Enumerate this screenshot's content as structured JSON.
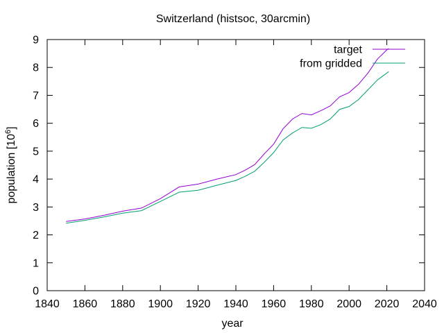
{
  "chart_data": {
    "type": "line",
    "title": "Switzerland (histsoc, 30arcmin)",
    "xlabel": "year",
    "ylabel_main": "population [10",
    "ylabel_exp": "6",
    "ylabel_close": "]",
    "xlim": [
      1840,
      2040
    ],
    "ylim": [
      0,
      9
    ],
    "xticks": [
      1840,
      1860,
      1880,
      1900,
      1920,
      1940,
      1960,
      1980,
      2000,
      2020,
      2040
    ],
    "yticks": [
      0,
      1,
      2,
      3,
      4,
      5,
      6,
      7,
      8,
      9
    ],
    "grid": false,
    "legend_position": "top-right",
    "series": [
      {
        "name": "target",
        "color": "#9400d3",
        "x": [
          1850,
          1860,
          1870,
          1880,
          1890,
          1900,
          1910,
          1920,
          1930,
          1940,
          1945,
          1950,
          1955,
          1960,
          1965,
          1970,
          1975,
          1980,
          1985,
          1990,
          1995,
          2000,
          2005,
          2010,
          2015,
          2020,
          2021
        ],
        "y": [
          2.48,
          2.57,
          2.7,
          2.85,
          2.96,
          3.3,
          3.72,
          3.82,
          4.0,
          4.16,
          4.32,
          4.52,
          4.9,
          5.25,
          5.8,
          6.15,
          6.35,
          6.3,
          6.45,
          6.62,
          6.95,
          7.1,
          7.4,
          7.8,
          8.3,
          8.63,
          8.68
        ]
      },
      {
        "name": "from gridded",
        "color": "#009e73",
        "x": [
          1850,
          1860,
          1870,
          1880,
          1890,
          1900,
          1910,
          1920,
          1930,
          1940,
          1945,
          1950,
          1955,
          1960,
          1965,
          1970,
          1975,
          1980,
          1985,
          1990,
          1995,
          2000,
          2005,
          2010,
          2015,
          2020,
          2021
        ],
        "y": [
          2.42,
          2.52,
          2.64,
          2.78,
          2.87,
          3.2,
          3.53,
          3.6,
          3.78,
          3.95,
          4.1,
          4.28,
          4.6,
          4.95,
          5.4,
          5.65,
          5.85,
          5.82,
          5.95,
          6.15,
          6.5,
          6.6,
          6.85,
          7.2,
          7.55,
          7.8,
          7.85
        ]
      }
    ]
  }
}
